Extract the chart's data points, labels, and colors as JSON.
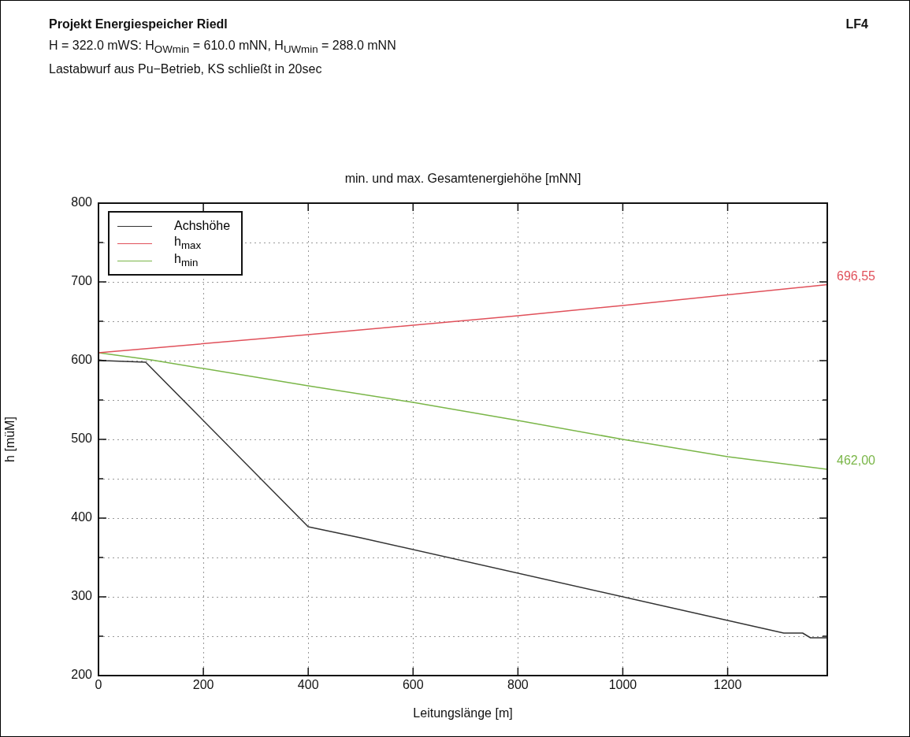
{
  "chart_data": {
    "type": "line",
    "title": "min. und max. Gesamtenergiehöhe [mNN]",
    "xlabel": "Leitungslänge [m]",
    "ylabel": "h [müM]",
    "annotations": [
      "Projekt Energiespeicher Riedl",
      "LF4",
      "H = 322.0 mWS: H$_{OWmin}$ = 610.0 mNN, H$_{UWmin}$ = 288.0 mNN",
      "Lastabwurf aus Pu−Betrieb, KS schließt in 20sec",
      {
        "text": "696,55",
        "x": 1390,
        "y": 696.55
      },
      {
        "text": "462,00",
        "x": 1390,
        "y": 462
      }
    ],
    "series": [
      {
        "name": "Achshöhe",
        "color": "#333333",
        "x": [
          0,
          10,
          90,
          400,
          500,
          1307,
          1343,
          1358,
          1390
        ],
        "values": [
          601,
          600,
          598,
          389,
          375,
          254,
          254,
          248,
          248
        ]
      },
      {
        "name": "h$_{max}$",
        "color": "#e0505a",
        "x": [
          0,
          400,
          800,
          1000,
          1390
        ],
        "values": [
          610,
          633,
          657,
          670,
          696.55
        ]
      },
      {
        "name": "h$_{min}$",
        "color": "#7ab648",
        "x": [
          0,
          100,
          400,
          600,
          800,
          1000,
          1200,
          1390
        ],
        "values": [
          610,
          601,
          568,
          547,
          524,
          500,
          478,
          462
        ]
      }
    ],
    "xlim": [
      0,
      1390
    ],
    "xticks": [
      0,
      200,
      400,
      600,
      800,
      1000,
      1200
    ],
    "ylim": [
      200,
      800
    ],
    "yticks": [
      200,
      {
        "value": 250,
        "label": null
      },
      300,
      {
        "value": 350,
        "label": null
      },
      400,
      {
        "value": 450,
        "label": null
      },
      500,
      {
        "value": 550,
        "label": null
      },
      600,
      {
        "value": 650,
        "label": null
      },
      700,
      {
        "value": 750,
        "label": null
      },
      800
    ],
    "grid": true,
    "legend": "top left",
    "marker": "none",
    "line_style": "solid"
  }
}
